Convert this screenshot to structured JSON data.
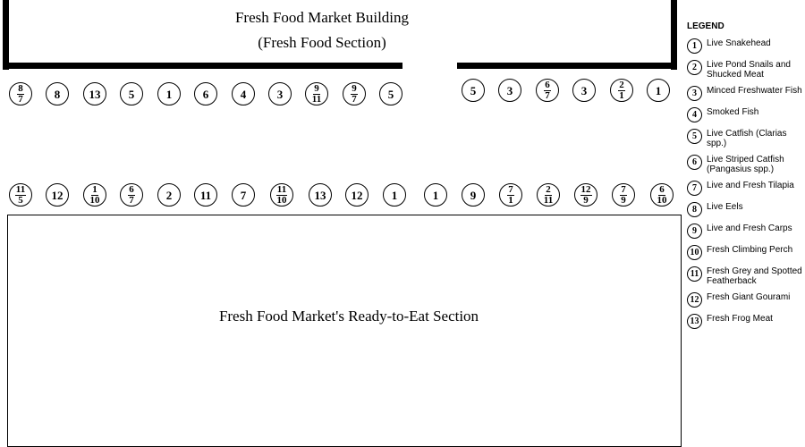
{
  "building": {
    "title": "Fresh Food Market Building",
    "subtitle": "(Fresh Food Section)"
  },
  "ready_section": {
    "title": "Fresh Food Market's Ready-to-Eat Section"
  },
  "top_row_left": [
    [
      "8",
      "7"
    ],
    [
      "8"
    ],
    [
      "13"
    ],
    [
      "5"
    ],
    [
      "1"
    ],
    [
      "6"
    ],
    [
      "4"
    ],
    [
      "3"
    ],
    [
      "9",
      "11"
    ],
    [
      "9",
      "7"
    ],
    [
      "5"
    ]
  ],
  "top_row_right": [
    [
      "5"
    ],
    [
      "3"
    ],
    [
      "6",
      "7"
    ],
    [
      "3"
    ],
    [
      "2",
      "1"
    ],
    [
      "1"
    ]
  ],
  "bottom_row": [
    [
      "11",
      "5"
    ],
    [
      "12"
    ],
    [
      "1",
      "10"
    ],
    [
      "6",
      "7"
    ],
    [
      "2"
    ],
    [
      "11"
    ],
    [
      "7"
    ],
    [
      "11",
      "10"
    ],
    [
      "13"
    ],
    [
      "12"
    ],
    [
      "1"
    ],
    [
      "1"
    ],
    [
      "9"
    ],
    [
      "7",
      "1"
    ],
    [
      "2",
      "11"
    ],
    [
      "12",
      "9"
    ],
    [
      "7",
      "9"
    ],
    [
      "6",
      "10"
    ]
  ],
  "legend": {
    "title": "LEGEND",
    "items": [
      {
        "num": "1",
        "label": "Live Snakehead"
      },
      {
        "num": "2",
        "label": "Live Pond Snails and Shucked Meat"
      },
      {
        "num": "3",
        "label": "Minced Freshwater Fish"
      },
      {
        "num": "4",
        "label": "Smoked Fish"
      },
      {
        "num": "5",
        "label": "Live Catfish (Clarias spp.)"
      },
      {
        "num": "6",
        "label": "Live Striped Catfish (Pangasius spp.)"
      },
      {
        "num": "7",
        "label": "Live and Fresh Tilapia"
      },
      {
        "num": "8",
        "label": "Live Eels"
      },
      {
        "num": "9",
        "label": "Live and Fresh Carps"
      },
      {
        "num": "10",
        "label": "Fresh Climbing Perch"
      },
      {
        "num": "11",
        "label": "Fresh Grey and Spotted Featherback"
      },
      {
        "num": "12",
        "label": "Fresh Giant Gourami"
      },
      {
        "num": "13",
        "label": "Fresh Frog Meat"
      }
    ]
  }
}
